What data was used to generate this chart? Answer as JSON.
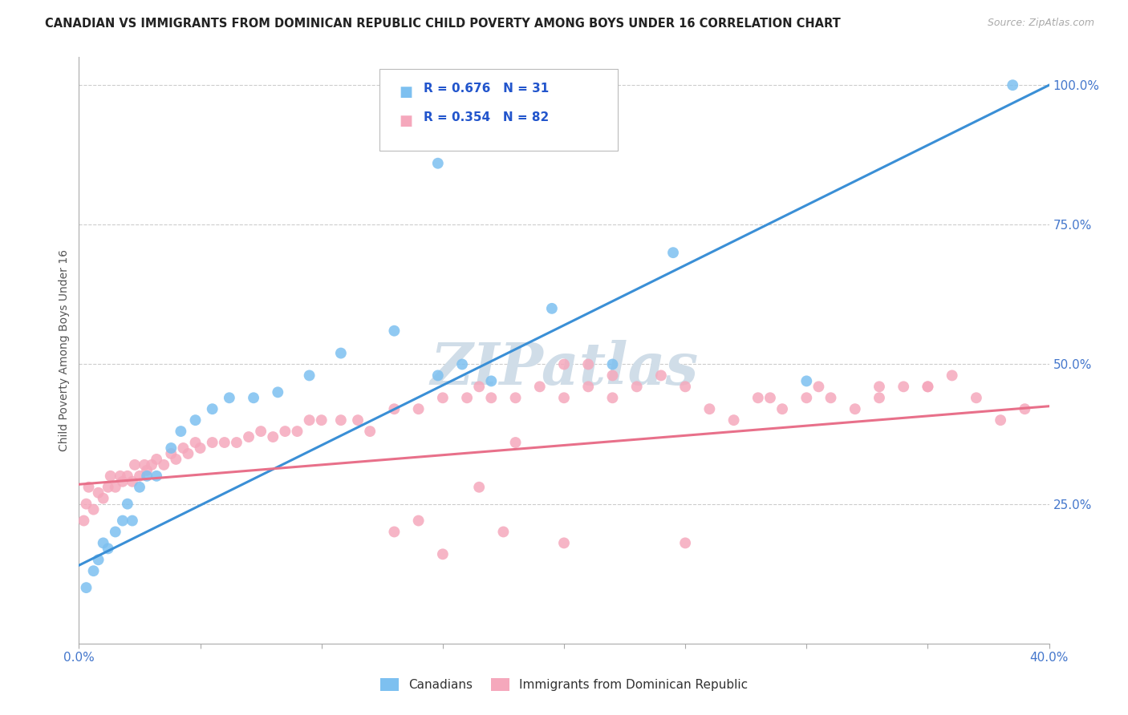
{
  "title": "CANADIAN VS IMMIGRANTS FROM DOMINICAN REPUBLIC CHILD POVERTY AMONG BOYS UNDER 16 CORRELATION CHART",
  "source": "Source: ZipAtlas.com",
  "ylabel": "Child Poverty Among Boys Under 16",
  "xlim": [
    0.0,
    0.4
  ],
  "ylim": [
    0.0,
    1.05
  ],
  "xticks": [
    0.0,
    0.05,
    0.1,
    0.15,
    0.2,
    0.25,
    0.3,
    0.35,
    0.4
  ],
  "yticks_right": [
    0.25,
    0.5,
    0.75,
    1.0
  ],
  "ytick_right_labels": [
    "25.0%",
    "50.0%",
    "75.0%",
    "100.0%"
  ],
  "blue_color": "#7dc0f0",
  "pink_color": "#f5a8bc",
  "blue_line_color": "#3a8fd6",
  "pink_line_color": "#e8708a",
  "R_blue": 0.676,
  "N_blue": 31,
  "R_pink": 0.354,
  "N_pink": 82,
  "legend_label_blue": "Canadians",
  "legend_label_pink": "Immigrants from Dominican Republic",
  "blue_scatter_x": [
    0.003,
    0.006,
    0.008,
    0.01,
    0.012,
    0.015,
    0.018,
    0.02,
    0.022,
    0.025,
    0.028,
    0.032,
    0.038,
    0.042,
    0.048,
    0.055,
    0.062,
    0.072,
    0.082,
    0.095,
    0.108,
    0.13,
    0.148,
    0.158,
    0.17,
    0.195,
    0.148,
    0.22,
    0.245,
    0.3,
    0.385
  ],
  "blue_scatter_y": [
    0.1,
    0.13,
    0.15,
    0.18,
    0.17,
    0.2,
    0.22,
    0.25,
    0.22,
    0.28,
    0.3,
    0.3,
    0.35,
    0.38,
    0.4,
    0.42,
    0.44,
    0.44,
    0.45,
    0.48,
    0.52,
    0.56,
    0.86,
    0.5,
    0.47,
    0.6,
    0.48,
    0.5,
    0.7,
    0.47,
    1.0
  ],
  "pink_scatter_x": [
    0.002,
    0.003,
    0.004,
    0.006,
    0.008,
    0.01,
    0.012,
    0.013,
    0.015,
    0.017,
    0.018,
    0.02,
    0.022,
    0.023,
    0.025,
    0.027,
    0.028,
    0.03,
    0.032,
    0.035,
    0.038,
    0.04,
    0.043,
    0.045,
    0.048,
    0.05,
    0.055,
    0.06,
    0.065,
    0.07,
    0.075,
    0.08,
    0.085,
    0.09,
    0.095,
    0.1,
    0.108,
    0.115,
    0.12,
    0.13,
    0.14,
    0.15,
    0.16,
    0.165,
    0.17,
    0.18,
    0.19,
    0.2,
    0.21,
    0.22,
    0.23,
    0.24,
    0.25,
    0.26,
    0.27,
    0.28,
    0.29,
    0.3,
    0.31,
    0.32,
    0.33,
    0.34,
    0.35,
    0.36,
    0.37,
    0.38,
    0.39,
    0.2,
    0.22,
    0.18,
    0.165,
    0.13,
    0.15,
    0.25,
    0.285,
    0.305,
    0.33,
    0.35,
    0.14,
    0.175,
    0.2,
    0.21
  ],
  "pink_scatter_y": [
    0.22,
    0.25,
    0.28,
    0.24,
    0.27,
    0.26,
    0.28,
    0.3,
    0.28,
    0.3,
    0.29,
    0.3,
    0.29,
    0.32,
    0.3,
    0.32,
    0.31,
    0.32,
    0.33,
    0.32,
    0.34,
    0.33,
    0.35,
    0.34,
    0.36,
    0.35,
    0.36,
    0.36,
    0.36,
    0.37,
    0.38,
    0.37,
    0.38,
    0.38,
    0.4,
    0.4,
    0.4,
    0.4,
    0.38,
    0.42,
    0.42,
    0.44,
    0.44,
    0.46,
    0.44,
    0.44,
    0.46,
    0.44,
    0.46,
    0.44,
    0.46,
    0.48,
    0.46,
    0.42,
    0.4,
    0.44,
    0.42,
    0.44,
    0.44,
    0.42,
    0.46,
    0.46,
    0.46,
    0.48,
    0.44,
    0.4,
    0.42,
    0.5,
    0.48,
    0.36,
    0.28,
    0.2,
    0.16,
    0.18,
    0.44,
    0.46,
    0.44,
    0.46,
    0.22,
    0.2,
    0.18,
    0.5
  ],
  "blue_line_x0": 0.0,
  "blue_line_y0": 0.14,
  "blue_line_x1": 0.4,
  "blue_line_y1": 1.0,
  "pink_line_x0": 0.0,
  "pink_line_y0": 0.285,
  "pink_line_x1": 0.4,
  "pink_line_y1": 0.425,
  "background_color": "#ffffff",
  "grid_color": "#cccccc",
  "watermark_text": "ZIPatlas",
  "watermark_color": "#d0dde8"
}
